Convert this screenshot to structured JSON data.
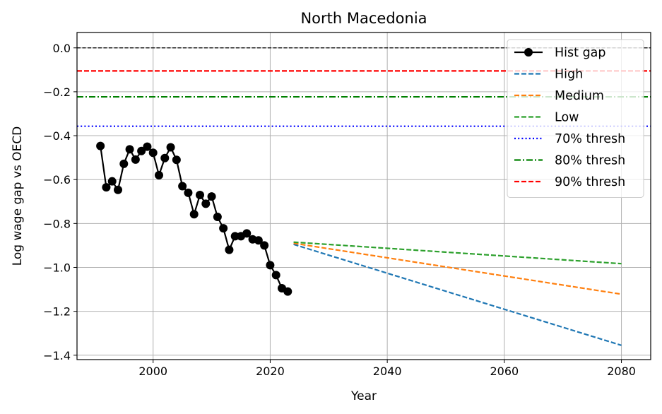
{
  "chart_data": {
    "type": "line",
    "title": "North Macedonia",
    "xlabel": "Year",
    "ylabel": "Log wage gap vs OECD",
    "xlim": [
      1987,
      2085
    ],
    "ylim": [
      -1.42,
      0.07
    ],
    "xticks": [
      2000,
      2020,
      2040,
      2060,
      2080
    ],
    "yticks": [
      0.0,
      -0.2,
      -0.4,
      -0.6,
      -0.8,
      -1.0,
      -1.2,
      -1.4
    ],
    "xtick_labels": [
      "2000",
      "2020",
      "2040",
      "2060",
      "2080"
    ],
    "ytick_labels": [
      "0.0",
      "−0.2",
      "−0.4",
      "−0.6",
      "−0.8",
      "−1.0",
      "−1.2",
      "−1.4"
    ],
    "grid": true,
    "legend_position": "top-right",
    "series": [
      {
        "name": "Hist gap",
        "color": "#000000",
        "style": "solid-marker",
        "x": [
          1991,
          1992,
          1993,
          1994,
          1995,
          1996,
          1997,
          1998,
          1999,
          2000,
          2001,
          2002,
          2003,
          2004,
          2005,
          2006,
          2007,
          2008,
          2009,
          2010,
          2011,
          2012,
          2013,
          2014,
          2015,
          2016,
          2017,
          2018,
          2019,
          2020,
          2021,
          2022,
          2023
        ],
        "y": [
          -0.447,
          -0.635,
          -0.608,
          -0.647,
          -0.528,
          -0.462,
          -0.509,
          -0.47,
          -0.45,
          -0.478,
          -0.58,
          -0.502,
          -0.453,
          -0.51,
          -0.63,
          -0.66,
          -0.758,
          -0.67,
          -0.71,
          -0.677,
          -0.77,
          -0.822,
          -0.92,
          -0.858,
          -0.858,
          -0.845,
          -0.872,
          -0.877,
          -0.9,
          -0.99,
          -1.035,
          -1.095,
          -1.11
        ]
      },
      {
        "name": "High",
        "color": "#1f77b4",
        "style": "dashed",
        "x": [
          2024,
          2080
        ],
        "y": [
          -0.895,
          -1.355
        ]
      },
      {
        "name": "Medium",
        "color": "#ff7f0e",
        "style": "dashed",
        "x": [
          2024,
          2080
        ],
        "y": [
          -0.89,
          -1.122
        ]
      },
      {
        "name": "Low",
        "color": "#2ca02c",
        "style": "dashed",
        "x": [
          2024,
          2080
        ],
        "y": [
          -0.885,
          -0.983
        ]
      },
      {
        "name": "70% thresh",
        "color": "#0000ff",
        "style": "dotted",
        "hline": -0.357
      },
      {
        "name": "80% thresh",
        "color": "#008000",
        "style": "dashdot",
        "hline": -0.223
      },
      {
        "name": "90% thresh",
        "color": "#ff0000",
        "style": "dashed",
        "hline": -0.105
      }
    ],
    "reference_lines": [
      {
        "color": "#000000",
        "style": "dashed-thin",
        "hline": 0.0
      }
    ]
  }
}
